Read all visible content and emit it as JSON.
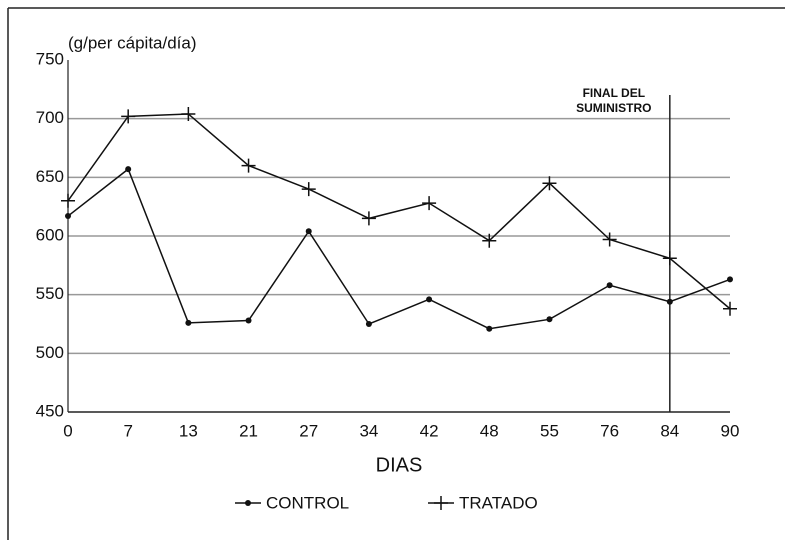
{
  "chart_data": {
    "type": "line",
    "y_label": "(g/per cápita/día)",
    "x_label": "DIAS",
    "categories": [
      "0",
      "7",
      "13",
      "21",
      "27",
      "34",
      "42",
      "48",
      "55",
      "76",
      "84",
      "90"
    ],
    "series": [
      {
        "name": "CONTROL",
        "color": "#111111",
        "marker": "circle",
        "values": [
          617,
          657,
          526,
          528,
          604,
          525,
          546,
          521,
          529,
          558,
          544,
          563
        ]
      },
      {
        "name": "TRATADO",
        "color": "#111111",
        "marker": "plus",
        "values": [
          630,
          702,
          704,
          660,
          640,
          615,
          628,
          596,
          645,
          597,
          581,
          538
        ]
      }
    ],
    "ylim": [
      450,
      750
    ],
    "yticks": [
      450,
      500,
      550,
      600,
      650,
      700,
      750
    ],
    "grid": true,
    "annotation": {
      "text": [
        "FINAL DEL",
        "SUMINISTRO"
      ],
      "at": "84"
    },
    "legend": "bottom"
  }
}
